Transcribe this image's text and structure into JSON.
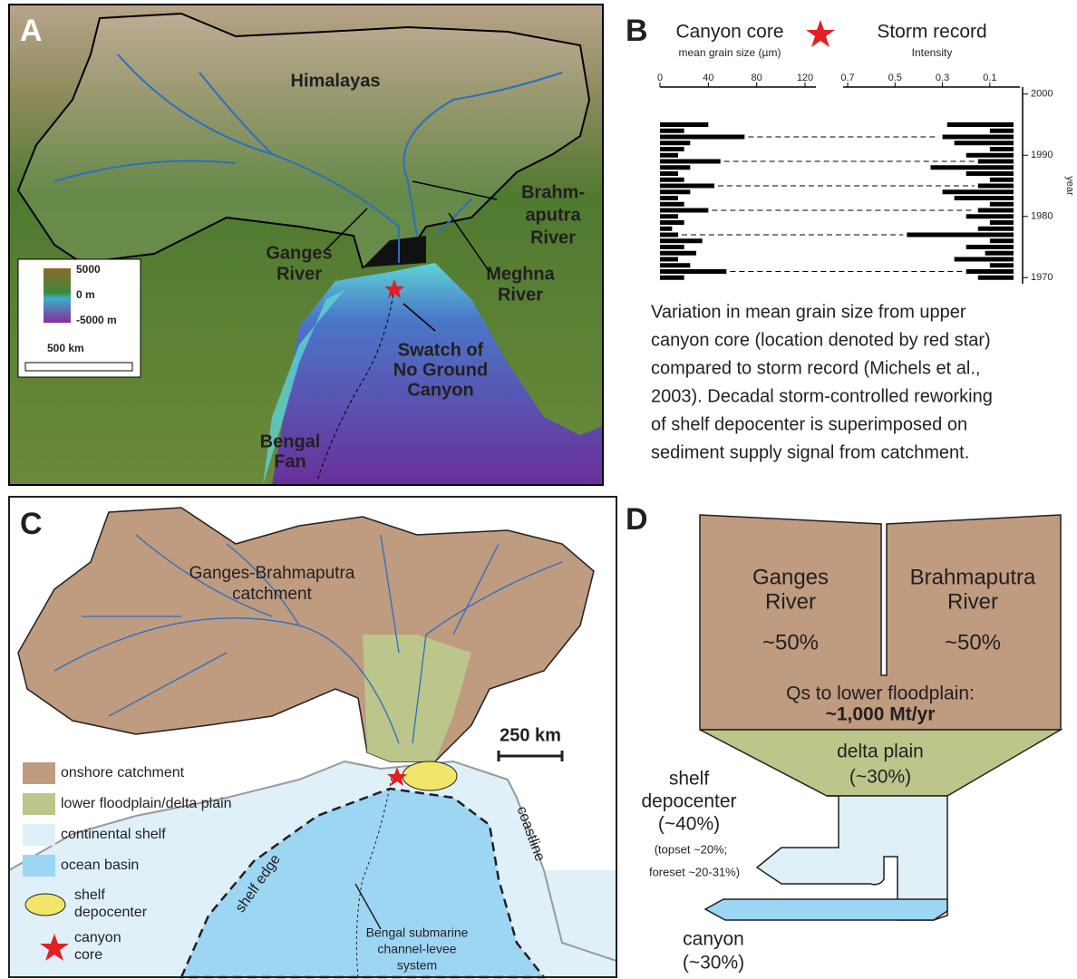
{
  "panel_a": {
    "letter": "A",
    "himalayas": "Himalayas",
    "ganges": [
      "Ganges",
      "River"
    ],
    "brahmaputra": [
      "Brahm-",
      "aputra",
      "River"
    ],
    "meghna": [
      "Meghna",
      "River"
    ],
    "swatch": [
      "Swatch of",
      "No Ground",
      "Canyon"
    ],
    "bengal_fan": [
      "Bengal",
      "Fan"
    ],
    "legend": {
      "top": "5000",
      "mid": "0 m",
      "bottom": "-5000 m",
      "scale": "500 km"
    }
  },
  "panel_b": {
    "letter": "B",
    "caption": [
      "Variation in mean grain size from upper",
      "canyon core (location denoted by red star)",
      "compared to storm record (Michels et al.,",
      "2003). Decadal storm-controlled reworking",
      "of shelf depocenter is superimposed on",
      "sediment supply signal from catchment."
    ]
  },
  "chart_data": {
    "type": "spike",
    "y_label": "year",
    "ylim": [
      1969,
      2001
    ],
    "yticks": [
      1970,
      1980,
      1990,
      2000
    ],
    "years": [
      1970,
      1971,
      1972,
      1973,
      1974,
      1975,
      1976,
      1977,
      1978,
      1979,
      1980,
      1981,
      1982,
      1983,
      1984,
      1985,
      1986,
      1987,
      1988,
      1989,
      1990,
      1991,
      1992,
      1993,
      1994,
      1995
    ],
    "series": [
      {
        "name": "Canyon core",
        "axis_label": "mean grain size (µm)",
        "color": "#000000",
        "xlim": [
          0,
          120
        ],
        "xticks": [
          0,
          40,
          80,
          120
        ],
        "values": [
          20,
          55,
          25,
          15,
          30,
          20,
          35,
          15,
          10,
          20,
          15,
          40,
          20,
          15,
          25,
          45,
          20,
          15,
          25,
          50,
          15,
          20,
          25,
          70,
          20,
          40
        ]
      },
      {
        "name": "Storm record",
        "axis_label": "Intensity",
        "color": "#000000",
        "xlim": [
          0.7,
          0
        ],
        "xticks": [
          0.7,
          0.5,
          0.3,
          0.1
        ],
        "values": [
          0.15,
          0.2,
          0.1,
          0.25,
          0.12,
          0.2,
          0.1,
          0.45,
          0.15,
          0.1,
          0.2,
          0.15,
          0.1,
          0.25,
          0.3,
          0.15,
          0.1,
          0.2,
          0.35,
          0.15,
          0.2,
          0.1,
          0.25,
          0.3,
          0.1,
          0.28
        ]
      }
    ],
    "links": [
      1971,
      1977,
      1981,
      1985,
      1989,
      1993
    ]
  },
  "panel_c": {
    "letter": "C",
    "catchment": [
      "Ganges-Brahmaputra",
      "catchment"
    ],
    "scale": "250 km",
    "shelf_edge": "shelf edge",
    "coastline": "coastline",
    "channel": [
      "Bengal submarine",
      "channel-levee",
      "system"
    ],
    "legend": [
      "onshore catchment",
      "lower floodplain/delta plain",
      "continental shelf",
      "ocean basin"
    ],
    "depocenter": [
      "shelf",
      "depocenter"
    ],
    "core": [
      "canyon",
      "core"
    ]
  },
  "panel_d": {
    "letter": "D",
    "ganges": [
      "Ganges",
      "River",
      "~50%"
    ],
    "brahmaputra": [
      "Brahmaputra",
      "River",
      "~50%"
    ],
    "qs": [
      "Qs to lower floodplain:",
      "~1,000 Mt/yr"
    ],
    "delta": [
      "delta plain",
      "(~30%)"
    ],
    "shelf": [
      "shelf",
      "depocenter",
      "(~40%)",
      "(topset ~20%;",
      "foreset ~20-31%)"
    ],
    "canyon": [
      "canyon",
      "(~30%)"
    ]
  }
}
